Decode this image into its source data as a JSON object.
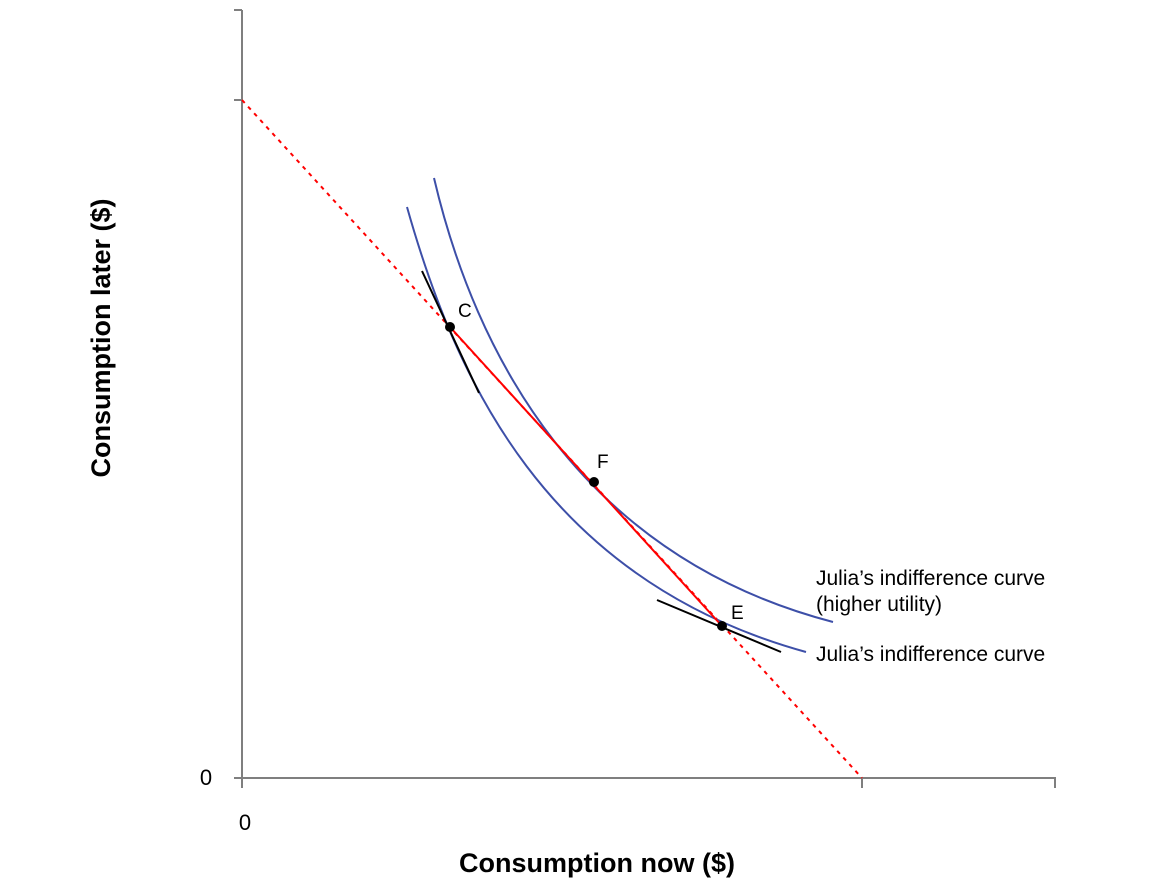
{
  "axes": {
    "x_title": "Consumption now ($)",
    "y_title": "Consumption later ($)",
    "x_origin_label": "0",
    "y_origin_label": "0"
  },
  "points": {
    "C": "C",
    "F": "F",
    "E": "E"
  },
  "curves": {
    "higher": {
      "label_line1": "Julia’s indifference curve",
      "label_line2": "(higher utility)"
    },
    "lower": {
      "label": "Julia’s indifference curve"
    }
  },
  "colors": {
    "axis": "#7f7f7f",
    "indifference_curve": "#3d4fa8",
    "budget_line": "#ff0000",
    "tangent": "#000000",
    "point": "#000000"
  }
}
